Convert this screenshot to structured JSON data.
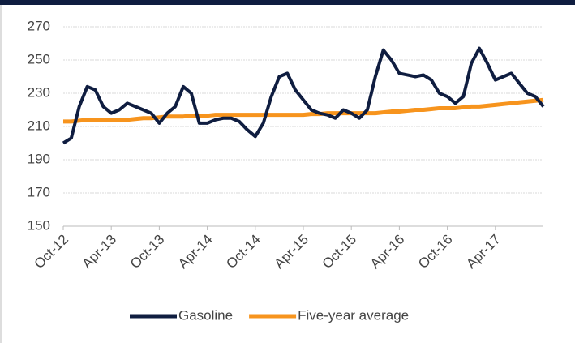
{
  "chart_data": {
    "type": "line",
    "categories": [
      "Oct-12",
      null,
      null,
      null,
      null,
      null,
      "Apr-13",
      null,
      null,
      null,
      null,
      null,
      "Oct-13",
      null,
      null,
      null,
      null,
      null,
      "Apr-14",
      null,
      null,
      null,
      null,
      null,
      "Oct-14",
      null,
      null,
      null,
      null,
      null,
      "Apr-15",
      null,
      null,
      null,
      null,
      null,
      "Oct-15",
      null,
      null,
      null,
      null,
      null,
      "Apr-16",
      null,
      null,
      null,
      null,
      null,
      "Oct-16",
      null,
      null,
      null,
      null,
      null,
      "Apr-17",
      null,
      null,
      null,
      null,
      null,
      null
    ],
    "series": [
      {
        "name": "Gasoline",
        "color": "#0f1d40",
        "values": [
          200,
          203,
          222,
          234,
          232,
          222,
          218,
          220,
          224,
          222,
          220,
          218,
          212,
          218,
          222,
          234,
          230,
          212,
          212,
          214,
          215,
          215,
          213,
          208,
          204,
          212,
          228,
          240,
          242,
          232,
          226,
          220,
          218,
          217,
          215,
          220,
          218,
          215,
          220,
          240,
          256,
          250,
          242,
          241,
          240,
          241,
          238,
          230,
          228,
          224,
          228,
          248,
          257,
          248,
          238,
          240,
          242,
          236,
          230,
          228,
          222
        ]
      },
      {
        "name": "Five-year average",
        "color": "#f7941d",
        "values": [
          213,
          213,
          213.5,
          214,
          214,
          214,
          214,
          214,
          214,
          214.5,
          215,
          215,
          215.5,
          216,
          216,
          216,
          216.5,
          216.5,
          216.5,
          217,
          217,
          217,
          217,
          217,
          217,
          217,
          217,
          217,
          217,
          217,
          217,
          217.5,
          217.5,
          218,
          218,
          218,
          218,
          218,
          218,
          218,
          218.5,
          219,
          219,
          219.5,
          220,
          220,
          220.5,
          221,
          221,
          221,
          221.5,
          222,
          222,
          222.5,
          223,
          223.5,
          224,
          224.5,
          225,
          225.5,
          226
        ]
      }
    ],
    "ylim": [
      150,
      270
    ],
    "yticks": [
      150,
      170,
      190,
      210,
      230,
      250,
      270
    ],
    "grid": true,
    "legend": "bottom"
  }
}
